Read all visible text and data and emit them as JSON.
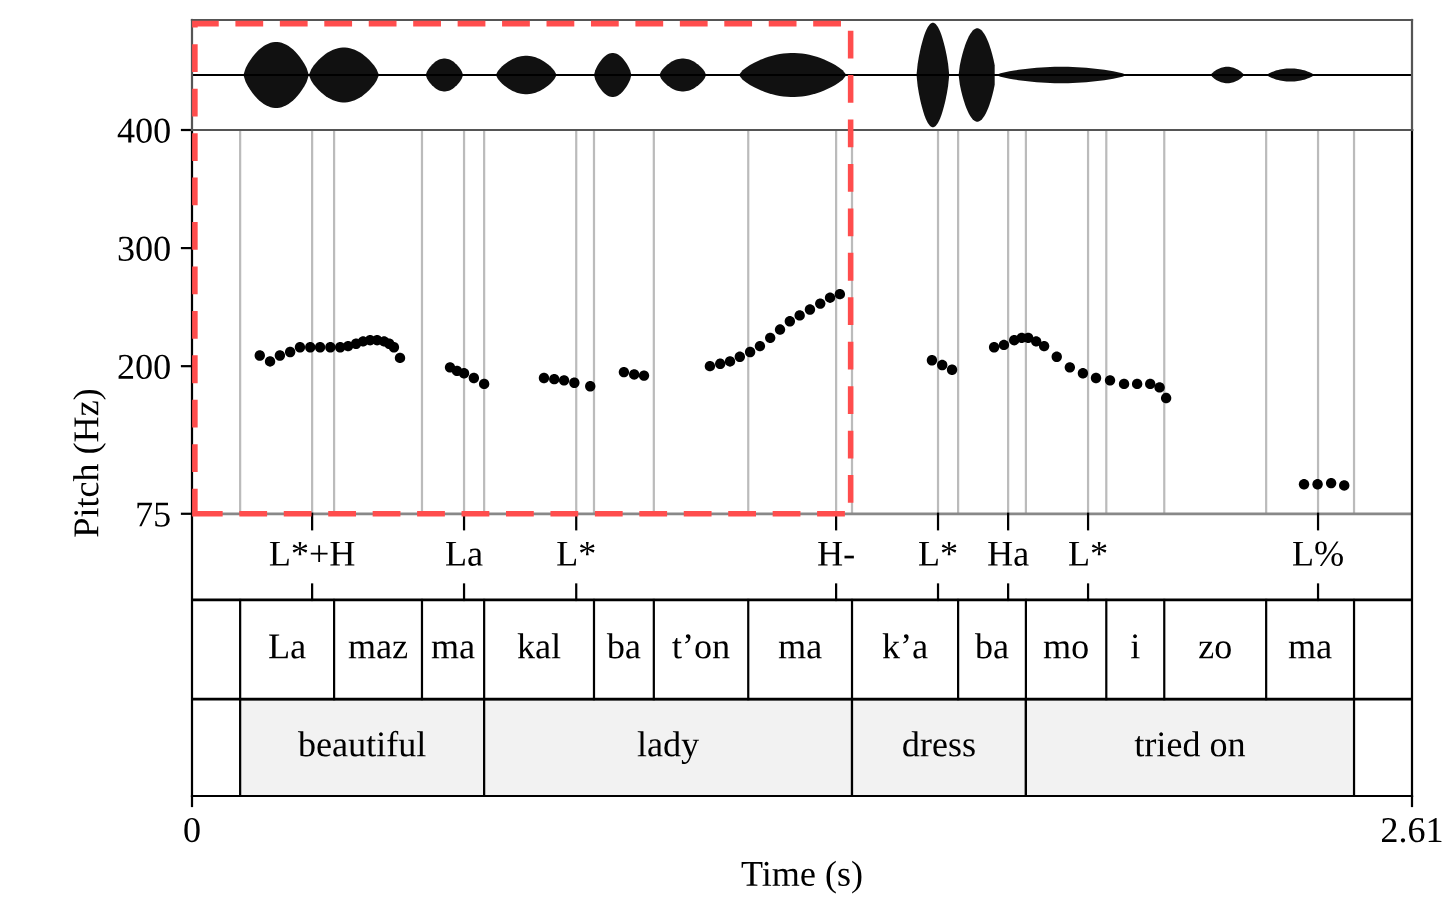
{
  "chart_data": {
    "type": "scatter",
    "xlabel": "Time (s)",
    "ylabel": "Pitch (Hz)",
    "xlim": [
      0,
      2.61
    ],
    "xticks": [
      0,
      2.61
    ],
    "ylim": [
      -164,
      400
    ],
    "yticks": [
      75,
      200,
      300,
      400
    ],
    "marker": "circle",
    "series": [
      {
        "color": "#000000",
        "x": [
          0.145,
          0.167,
          0.188,
          0.21,
          0.231,
          0.253,
          0.274,
          0.296,
          0.317,
          0.334,
          0.351,
          0.366,
          0.381,
          0.396,
          0.411,
          0.422,
          0.432,
          0.445,
          0.552,
          0.567,
          0.582,
          0.603,
          0.625,
          0.753,
          0.775,
          0.796,
          0.818,
          0.852,
          0.924,
          0.946,
          0.967,
          1.108,
          1.13,
          1.151,
          1.172,
          1.194,
          1.215,
          1.237,
          1.258,
          1.279,
          1.3,
          1.322,
          1.344,
          1.365,
          1.386,
          1.583,
          1.605,
          1.626,
          1.716,
          1.737,
          1.759,
          1.775,
          1.789,
          1.806,
          1.823,
          1.85,
          1.878,
          1.906,
          1.934,
          1.964,
          1.994,
          2.022,
          2.05,
          2.07,
          2.084,
          2.379,
          2.408,
          2.437,
          2.465
        ],
        "values": [
          209,
          204,
          209,
          212,
          216,
          216,
          216,
          216,
          216,
          217,
          219,
          221,
          222,
          222,
          221,
          219,
          216,
          207,
          199,
          196,
          194,
          190,
          185,
          190,
          189,
          188,
          186,
          183,
          195,
          193,
          192,
          200,
          202,
          204,
          208,
          212,
          217,
          224,
          231,
          238,
          243,
          248,
          253,
          258,
          261,
          205,
          201,
          197,
          216,
          218,
          222,
          224,
          224,
          221,
          217,
          208,
          199,
          194,
          190,
          188,
          185,
          185,
          185,
          182,
          173,
          100,
          100,
          101,
          99
        ]
      }
    ],
    "ref_lines": [
      {
        "axis": "y",
        "value": 75,
        "color": "#888888"
      },
      {
        "axis": "y",
        "value": 2,
        "color": "#000000"
      },
      {
        "axis": "y",
        "value": -82,
        "color": "#000000"
      },
      {
        "axis": "x",
        "value": 0.103
      },
      {
        "axis": "x",
        "value": 0.304
      },
      {
        "axis": "x",
        "value": 0.492
      },
      {
        "axis": "x",
        "value": 0.625
      },
      {
        "axis": "x",
        "value": 0.86
      },
      {
        "axis": "x",
        "value": 0.988
      },
      {
        "axis": "x",
        "value": 1.19
      },
      {
        "axis": "x",
        "value": 1.412
      },
      {
        "axis": "x",
        "value": 1.639
      },
      {
        "axis": "x",
        "value": 1.784
      },
      {
        "axis": "x",
        "value": 1.956
      },
      {
        "axis": "x",
        "value": 2.08
      },
      {
        "axis": "x",
        "value": 2.298
      },
      {
        "axis": "x",
        "value": 2.486
      },
      {
        "axis": "x",
        "value": 0.257,
        "label": "L*+H"
      },
      {
        "axis": "x",
        "value": 0.582,
        "label": "La"
      },
      {
        "axis": "x",
        "value": 0.822,
        "label": "L*"
      },
      {
        "axis": "x",
        "value": 1.378,
        "label": "H-"
      },
      {
        "axis": "x",
        "value": 1.596,
        "label": "L*"
      },
      {
        "axis": "x",
        "value": 1.746,
        "label": "Ha"
      },
      {
        "axis": "x",
        "value": 1.917,
        "label": "L*"
      },
      {
        "axis": "x",
        "value": 2.409,
        "label": "L%"
      }
    ],
    "bands": [
      {
        "axis": "x",
        "from": 0.103,
        "to": 0.625,
        "label": "beautiful",
        "color": "#f2f2f2"
      },
      {
        "axis": "x",
        "from": 0.625,
        "to": 1.412,
        "label": "lady",
        "color": "#f2f2f2"
      },
      {
        "axis": "x",
        "from": 1.412,
        "to": 1.784,
        "label": "dress",
        "color": "#f2f2f2"
      },
      {
        "axis": "x",
        "from": 1.784,
        "to": 2.486,
        "label": "tried on",
        "color": "#f2f2f2"
      }
    ],
    "annotations": [
      "La",
      "maz",
      "ma",
      "kal",
      "ba",
      "t’on",
      "ma",
      "k’a",
      "ba",
      "mo",
      "i",
      "zo",
      "ma"
    ]
  }
}
